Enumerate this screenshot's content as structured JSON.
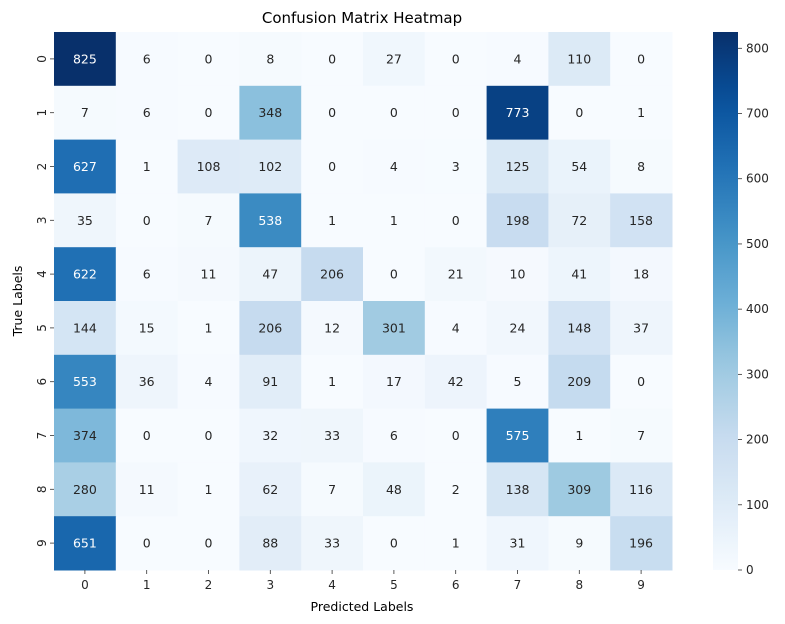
{
  "chart_data": {
    "type": "heatmap",
    "title": "Confusion Matrix Heatmap",
    "xlabel": "Predicted Labels",
    "ylabel": "True Labels",
    "x_categories": [
      "0",
      "1",
      "2",
      "3",
      "4",
      "5",
      "6",
      "7",
      "8",
      "9"
    ],
    "y_categories": [
      "0",
      "1",
      "2",
      "3",
      "4",
      "5",
      "6",
      "7",
      "8",
      "9"
    ],
    "values": [
      [
        825,
        6,
        0,
        8,
        0,
        27,
        0,
        4,
        110,
        0
      ],
      [
        7,
        6,
        0,
        348,
        0,
        0,
        0,
        773,
        0,
        1
      ],
      [
        627,
        1,
        108,
        102,
        0,
        4,
        3,
        125,
        54,
        8
      ],
      [
        35,
        0,
        7,
        538,
        1,
        1,
        0,
        198,
        72,
        158
      ],
      [
        622,
        6,
        11,
        47,
        206,
        0,
        21,
        10,
        41,
        18
      ],
      [
        144,
        15,
        1,
        206,
        12,
        301,
        4,
        24,
        148,
        37
      ],
      [
        553,
        36,
        4,
        91,
        1,
        17,
        42,
        5,
        209,
        0
      ],
      [
        374,
        0,
        0,
        32,
        33,
        6,
        0,
        575,
        1,
        7
      ],
      [
        280,
        11,
        1,
        62,
        7,
        48,
        2,
        138,
        309,
        116
      ],
      [
        651,
        0,
        0,
        88,
        33,
        0,
        1,
        31,
        9,
        196
      ]
    ],
    "colormap": "Blues",
    "colorbar": {
      "range": [
        0,
        825
      ],
      "ticks": [
        "0",
        "100",
        "200",
        "300",
        "400",
        "500",
        "600",
        "700",
        "800"
      ]
    },
    "annotations": true,
    "grid": false
  }
}
